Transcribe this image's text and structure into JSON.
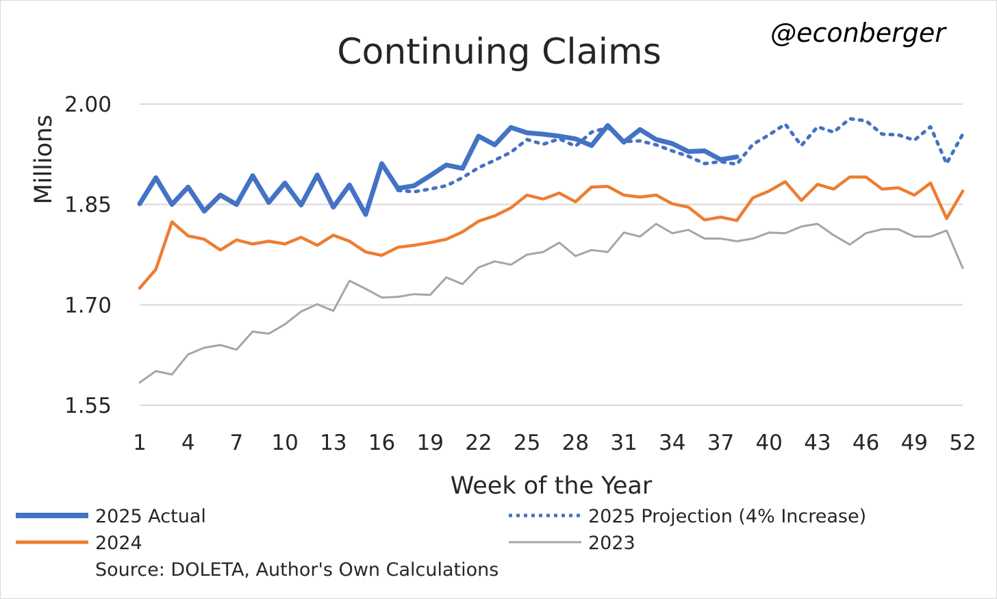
{
  "chart_data": {
    "type": "line",
    "title": "Continuing Claims",
    "handle": "@econberger",
    "xlabel": "Week of the Year",
    "ylabel": "Millions",
    "ylim": [
      1.55,
      2.0
    ],
    "yticks": [
      "1.55",
      "1.70",
      "1.85",
      "2.00"
    ],
    "xlim": [
      1,
      52
    ],
    "xticks": [
      1,
      4,
      7,
      10,
      13,
      16,
      19,
      22,
      25,
      28,
      31,
      34,
      37,
      40,
      43,
      46,
      49,
      52
    ],
    "grid": "horizontal",
    "legend_position": "bottom",
    "source": "Source: DOLETA, Author's Own Calculations",
    "series": [
      {
        "name": "2025 Actual",
        "color": "#4472C4",
        "style": "solid-thick",
        "x": [
          1,
          2,
          3,
          4,
          5,
          6,
          7,
          8,
          9,
          10,
          11,
          12,
          13,
          14,
          15,
          16,
          17,
          18,
          19,
          20,
          21,
          22,
          23,
          24,
          25,
          26,
          27,
          28,
          29,
          30,
          31,
          32,
          33,
          34,
          35,
          36,
          37,
          38
        ],
        "values": [
          1.851,
          1.89,
          1.85,
          1.876,
          1.84,
          1.864,
          1.85,
          1.893,
          1.853,
          1.882,
          1.849,
          1.894,
          1.846,
          1.879,
          1.835,
          1.911,
          1.874,
          1.878,
          1.893,
          1.909,
          1.904,
          1.952,
          1.939,
          1.965,
          1.957,
          1.955,
          1.952,
          1.948,
          1.938,
          1.968,
          1.943,
          1.962,
          1.947,
          1.941,
          1.929,
          1.93,
          1.917,
          1.921
        ]
      },
      {
        "name": "2025 Projection (4% Increase)",
        "color": "#4472C4",
        "style": "dotted",
        "x": [
          17,
          18,
          19,
          20,
          21,
          22,
          23,
          24,
          25,
          26,
          27,
          28,
          29,
          30,
          31,
          32,
          33,
          34,
          35,
          36,
          37,
          38,
          39,
          40,
          41,
          42,
          43,
          44,
          45,
          46,
          47,
          48,
          49,
          50,
          51,
          52
        ],
        "values": [
          1.871,
          1.869,
          1.873,
          1.878,
          1.89,
          1.905,
          1.916,
          1.928,
          1.947,
          1.94,
          1.948,
          1.937,
          1.958,
          1.965,
          1.944,
          1.945,
          1.939,
          1.93,
          1.922,
          1.911,
          1.914,
          1.91,
          1.94,
          1.954,
          1.97,
          1.938,
          1.966,
          1.958,
          1.978,
          1.975,
          1.955,
          1.954,
          1.946,
          1.966,
          1.911,
          1.955
        ]
      },
      {
        "name": "2024",
        "color": "#ED7D31",
        "style": "solid",
        "x": [
          1,
          2,
          3,
          4,
          5,
          6,
          7,
          8,
          9,
          10,
          11,
          12,
          13,
          14,
          15,
          16,
          17,
          18,
          19,
          20,
          21,
          22,
          23,
          24,
          25,
          26,
          27,
          28,
          29,
          30,
          31,
          32,
          33,
          34,
          35,
          36,
          37,
          38,
          39,
          40,
          41,
          42,
          43,
          44,
          45,
          46,
          47,
          48,
          49,
          50,
          51,
          52
        ],
        "values": [
          1.725,
          1.753,
          1.824,
          1.803,
          1.798,
          1.782,
          1.797,
          1.791,
          1.795,
          1.791,
          1.801,
          1.789,
          1.804,
          1.795,
          1.779,
          1.774,
          1.786,
          1.789,
          1.793,
          1.798,
          1.809,
          1.825,
          1.833,
          1.845,
          1.864,
          1.858,
          1.867,
          1.854,
          1.876,
          1.877,
          1.864,
          1.861,
          1.864,
          1.851,
          1.846,
          1.827,
          1.831,
          1.826,
          1.86,
          1.87,
          1.884,
          1.856,
          1.88,
          1.873,
          1.891,
          1.891,
          1.873,
          1.875,
          1.864,
          1.882,
          1.829,
          1.87
        ]
      },
      {
        "name": "2023",
        "color": "#A5A5A5",
        "style": "solid-thin",
        "x": [
          1,
          2,
          3,
          4,
          5,
          6,
          7,
          8,
          9,
          10,
          11,
          12,
          13,
          14,
          15,
          16,
          17,
          18,
          19,
          20,
          21,
          22,
          23,
          24,
          25,
          26,
          27,
          28,
          29,
          30,
          31,
          32,
          33,
          34,
          35,
          36,
          37,
          38,
          39,
          40,
          41,
          42,
          43,
          44,
          45,
          46,
          47,
          48,
          49,
          50,
          51,
          52
        ],
        "values": [
          1.584,
          1.601,
          1.596,
          1.626,
          1.636,
          1.64,
          1.633,
          1.66,
          1.657,
          1.671,
          1.69,
          1.701,
          1.691,
          1.736,
          1.724,
          1.711,
          1.712,
          1.716,
          1.715,
          1.741,
          1.731,
          1.756,
          1.765,
          1.76,
          1.775,
          1.779,
          1.793,
          1.773,
          1.782,
          1.779,
          1.808,
          1.802,
          1.821,
          1.807,
          1.812,
          1.799,
          1.799,
          1.795,
          1.799,
          1.808,
          1.807,
          1.817,
          1.821,
          1.804,
          1.79,
          1.807,
          1.813,
          1.813,
          1.802,
          1.802,
          1.811,
          1.755
        ]
      }
    ]
  }
}
